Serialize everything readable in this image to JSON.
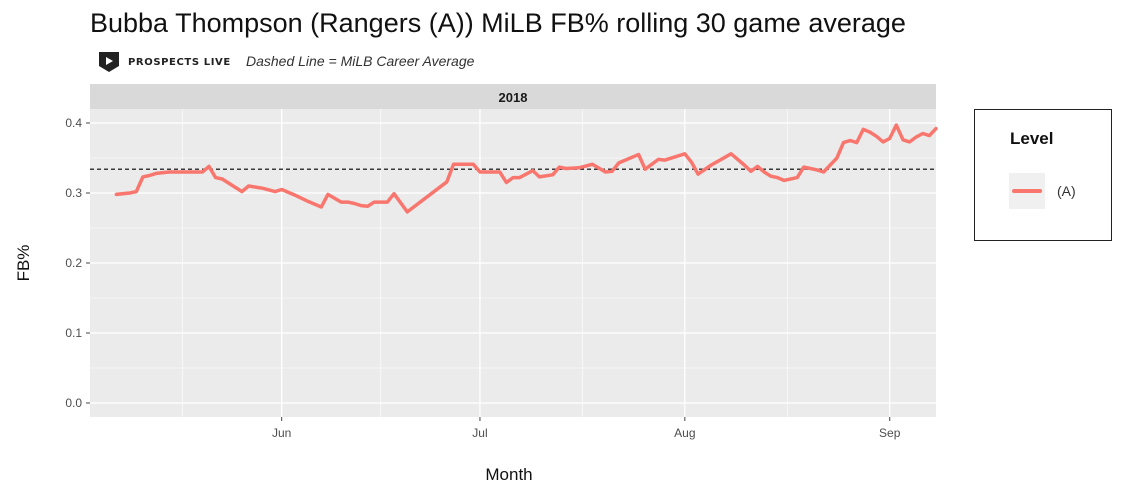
{
  "header": {
    "title": "Bubba Thompson (Rangers (A)) MiLB FB% rolling 30 game average",
    "brand": "PROSPECTS LIVE",
    "subtitle": "Dashed Line = MiLB Career Average"
  },
  "colors": {
    "line": "#f8766d",
    "panel": "#ebebeb",
    "strip": "#d9d9d9",
    "grid": "#ffffff",
    "reference": "#000000"
  },
  "chart_data": {
    "type": "line",
    "title": "Bubba Thompson (Rangers (A)) MiLB FB% rolling 30 game average",
    "facet": "2018",
    "xlabel": "Month",
    "ylabel": "FB%",
    "x_ticks": [
      {
        "label": "Jun",
        "date": "2018-06-01"
      },
      {
        "label": "Jul",
        "date": "2018-07-01"
      },
      {
        "label": "Aug",
        "date": "2018-08-01"
      },
      {
        "label": "Sep",
        "date": "2018-09-01"
      }
    ],
    "y_ticks": [
      "0.0",
      "0.1",
      "0.2",
      "0.3",
      "0.4"
    ],
    "xlim": [
      "2018-05-03",
      "2018-09-08"
    ],
    "ylim": [
      -0.02,
      0.42
    ],
    "grid": true,
    "legend": {
      "title": "Level",
      "position": "right",
      "entries": [
        "(A)"
      ]
    },
    "reference_line": {
      "value": 0.334,
      "style": "dashed",
      "label": "MiLB Career Average"
    },
    "series": [
      {
        "name": "(A)",
        "points": [
          [
            "2018-05-07",
            0.298
          ],
          [
            "2018-05-09",
            0.3
          ],
          [
            "2018-05-10",
            0.302
          ],
          [
            "2018-05-11",
            0.323
          ],
          [
            "2018-05-12",
            0.325
          ],
          [
            "2018-05-13",
            0.328
          ],
          [
            "2018-05-15",
            0.33
          ],
          [
            "2018-05-16",
            0.33
          ],
          [
            "2018-05-17",
            0.33
          ],
          [
            "2018-05-19",
            0.33
          ],
          [
            "2018-05-20",
            0.33
          ],
          [
            "2018-05-21",
            0.338
          ],
          [
            "2018-05-22",
            0.322
          ],
          [
            "2018-05-23",
            0.32
          ],
          [
            "2018-05-26",
            0.302
          ],
          [
            "2018-05-27",
            0.31
          ],
          [
            "2018-05-29",
            0.307
          ],
          [
            "2018-05-31",
            0.302
          ],
          [
            "2018-06-01",
            0.305
          ],
          [
            "2018-06-03",
            0.297
          ],
          [
            "2018-06-05",
            0.288
          ],
          [
            "2018-06-07",
            0.28
          ],
          [
            "2018-06-08",
            0.298
          ],
          [
            "2018-06-10",
            0.287
          ],
          [
            "2018-06-11",
            0.287
          ],
          [
            "2018-06-12",
            0.285
          ],
          [
            "2018-06-13",
            0.282
          ],
          [
            "2018-06-14",
            0.281
          ],
          [
            "2018-06-15",
            0.287
          ],
          [
            "2018-06-17",
            0.287
          ],
          [
            "2018-06-18",
            0.299
          ],
          [
            "2018-06-20",
            0.273
          ],
          [
            "2018-06-26",
            0.316
          ],
          [
            "2018-06-27",
            0.341
          ],
          [
            "2018-06-30",
            0.341
          ],
          [
            "2018-07-01",
            0.33
          ],
          [
            "2018-07-03",
            0.33
          ],
          [
            "2018-07-04",
            0.33
          ],
          [
            "2018-07-05",
            0.315
          ],
          [
            "2018-07-06",
            0.322
          ],
          [
            "2018-07-07",
            0.322
          ],
          [
            "2018-07-09",
            0.332
          ],
          [
            "2018-07-10",
            0.323
          ],
          [
            "2018-07-12",
            0.326
          ],
          [
            "2018-07-13",
            0.337
          ],
          [
            "2018-07-14",
            0.335
          ],
          [
            "2018-07-16",
            0.336
          ],
          [
            "2018-07-18",
            0.341
          ],
          [
            "2018-07-20",
            0.33
          ],
          [
            "2018-07-21",
            0.331
          ],
          [
            "2018-07-22",
            0.343
          ],
          [
            "2018-07-25",
            0.355
          ],
          [
            "2018-07-26",
            0.334
          ],
          [
            "2018-07-28",
            0.348
          ],
          [
            "2018-07-29",
            0.347
          ],
          [
            "2018-08-01",
            0.356
          ],
          [
            "2018-08-02",
            0.344
          ],
          [
            "2018-08-03",
            0.327
          ],
          [
            "2018-08-05",
            0.34
          ],
          [
            "2018-08-08",
            0.356
          ],
          [
            "2018-08-10",
            0.34
          ],
          [
            "2018-08-11",
            0.331
          ],
          [
            "2018-08-12",
            0.338
          ],
          [
            "2018-08-13",
            0.33
          ],
          [
            "2018-08-14",
            0.324
          ],
          [
            "2018-08-15",
            0.322
          ],
          [
            "2018-08-16",
            0.318
          ],
          [
            "2018-08-18",
            0.322
          ],
          [
            "2018-08-19",
            0.337
          ],
          [
            "2018-08-20",
            0.335
          ],
          [
            "2018-08-21",
            0.333
          ],
          [
            "2018-08-22",
            0.33
          ],
          [
            "2018-08-24",
            0.35
          ],
          [
            "2018-08-25",
            0.372
          ],
          [
            "2018-08-26",
            0.375
          ],
          [
            "2018-08-27",
            0.372
          ],
          [
            "2018-08-28",
            0.391
          ],
          [
            "2018-08-29",
            0.387
          ],
          [
            "2018-08-30",
            0.381
          ],
          [
            "2018-08-31",
            0.373
          ],
          [
            "2018-09-01",
            0.378
          ],
          [
            "2018-09-02",
            0.397
          ],
          [
            "2018-09-03",
            0.376
          ],
          [
            "2018-09-04",
            0.373
          ],
          [
            "2018-09-05",
            0.38
          ],
          [
            "2018-09-06",
            0.385
          ],
          [
            "2018-09-07",
            0.382
          ],
          [
            "2018-09-08",
            0.392
          ]
        ]
      }
    ]
  }
}
